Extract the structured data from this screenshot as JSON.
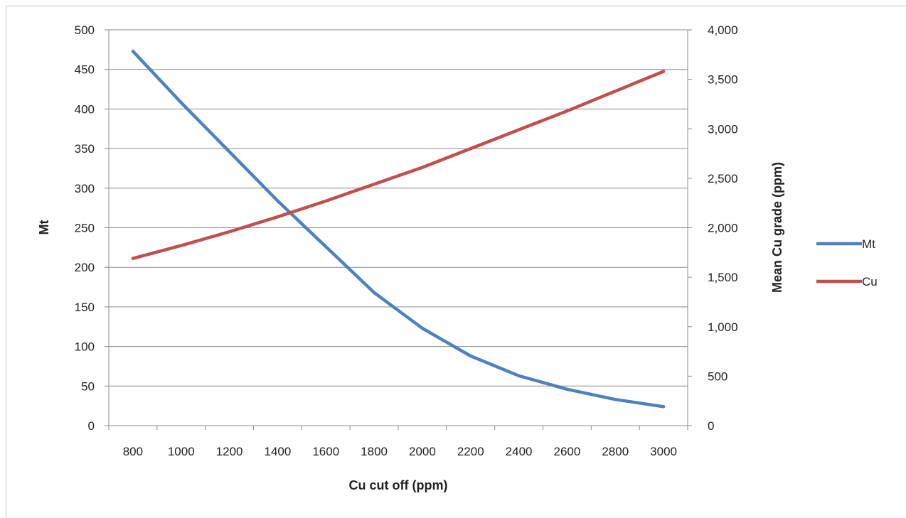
{
  "chart_data": {
    "type": "line",
    "title": "",
    "xlabel": "Cu cut off (ppm)",
    "ylabel": "Mt",
    "y2label": "Mean Cu grade (ppm)",
    "xlim": [
      700,
      3100
    ],
    "ylim": [
      0,
      500
    ],
    "y2lim": [
      0,
      4000
    ],
    "x_ticks": [
      "800",
      "1000",
      "1200",
      "1400",
      "1600",
      "1800",
      "2000",
      "2200",
      "2400",
      "2600",
      "2800",
      "3000"
    ],
    "y_ticks": [
      "0",
      "50",
      "100",
      "150",
      "200",
      "250",
      "300",
      "350",
      "400",
      "450",
      "500"
    ],
    "y2_ticks": [
      "0",
      "500",
      "1,000",
      "1,500",
      "2,000",
      "2,500",
      "3,000",
      "3,500",
      "4,000"
    ],
    "grid": true,
    "legend_position": "right",
    "x": [
      800,
      1000,
      1200,
      1400,
      1600,
      1800,
      2000,
      2200,
      2400,
      2600,
      2800,
      3000
    ],
    "series": [
      {
        "name": "Mt",
        "axis": "left",
        "color": "#4f81bd",
        "values": [
          473,
          408,
          346,
          284,
          226,
          168,
          123,
          88,
          63,
          46,
          33,
          24
        ]
      },
      {
        "name": "Cu",
        "axis": "right",
        "color": "#c0504d",
        "values": [
          1690,
          1820,
          1960,
          2110,
          2270,
          2440,
          2610,
          2800,
          2990,
          3180,
          3380,
          3580
        ]
      }
    ]
  }
}
